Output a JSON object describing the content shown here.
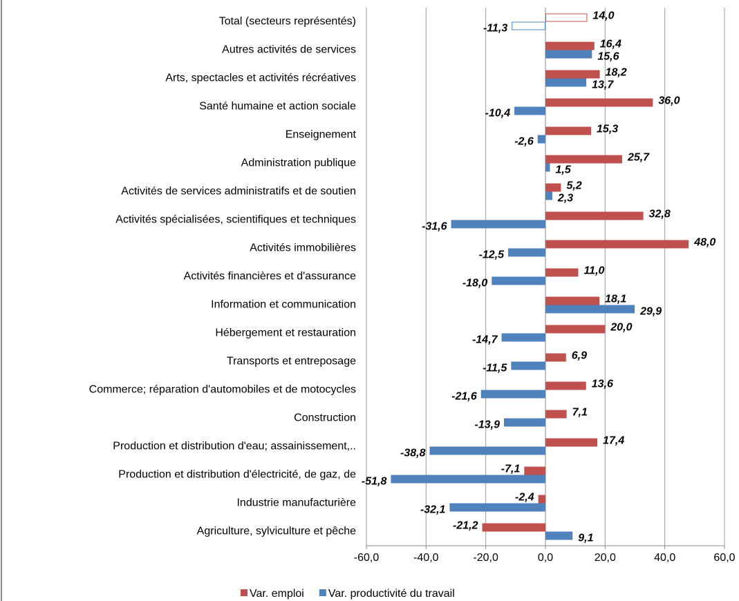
{
  "chart_data": {
    "type": "barh",
    "categories": [
      "Total (secteurs représentés)",
      "Autres activités de services",
      "Arts, spectacles et activités récréatives",
      "Santé humaine et action sociale",
      "Enseignement",
      "Administration publique",
      "Activités de services administratifs et de soutien",
      "Activités spécialisées, scientifiques et techniques",
      "Activités immobilières",
      "Activités financières et d'assurance",
      "Information et communication",
      "Hébergement et restauration",
      "Transports et entreposage",
      "Commerce; réparation d'automobiles et de motocycles",
      "Construction",
      "Production et distribution d'eau; assainissement,..",
      "Production et distribution d'électricité, de gaz, de",
      "Industrie manufacturière",
      "Agriculture, sylviculture et pêche"
    ],
    "series": [
      {
        "name": "Var. emploi",
        "color": "#c0504d",
        "values": [
          14.0,
          16.4,
          18.2,
          36.0,
          15.3,
          25.7,
          5.2,
          32.8,
          48.0,
          11.0,
          18.1,
          20.0,
          6.9,
          13.6,
          7.1,
          17.4,
          -7.1,
          -2.4,
          -21.2
        ],
        "value_labels": [
          "14,0",
          "16,4",
          "18,2",
          "36,0",
          "15,3",
          "25,7",
          "5,2",
          "32,8",
          "48,0",
          "11,0",
          "18,1",
          "20,0",
          "6,9",
          "13,6",
          "7,1",
          "17,4",
          "-7,1",
          "-2,4",
          "-21,2"
        ]
      },
      {
        "name": "Var. productivité du travail",
        "color": "#4f81bd",
        "values": [
          -11.3,
          15.6,
          13.7,
          -10.4,
          -2.6,
          1.5,
          2.3,
          -31.6,
          -12.5,
          -18.0,
          29.9,
          -14.7,
          -11.5,
          -21.6,
          -13.9,
          -38.8,
          -51.8,
          -32.1,
          9.1
        ],
        "value_labels": [
          "-11,3",
          "15,6",
          "13,7",
          "-10,4",
          "-2,6",
          "1,5",
          "2,3",
          "-31,6",
          "-12,5",
          "-18,0",
          "29,9",
          "-14,7",
          "-11,5",
          "-21,6",
          "-13,9",
          "-38,8",
          "-51,8",
          "-32,1",
          "9,1"
        ]
      }
    ],
    "outlined_category_index": 0,
    "xlim": [
      -60,
      60
    ],
    "xticks": [
      {
        "value": -60,
        "label": "-60,0"
      },
      {
        "value": -40,
        "label": "-40,0"
      },
      {
        "value": -20,
        "label": "-20,0"
      },
      {
        "value": 0,
        "label": "0,0"
      },
      {
        "value": 20,
        "label": "20,0"
      },
      {
        "value": 40,
        "label": "40,0"
      },
      {
        "value": 60,
        "label": "60,0"
      }
    ],
    "grid": true,
    "legend": "bottom"
  }
}
